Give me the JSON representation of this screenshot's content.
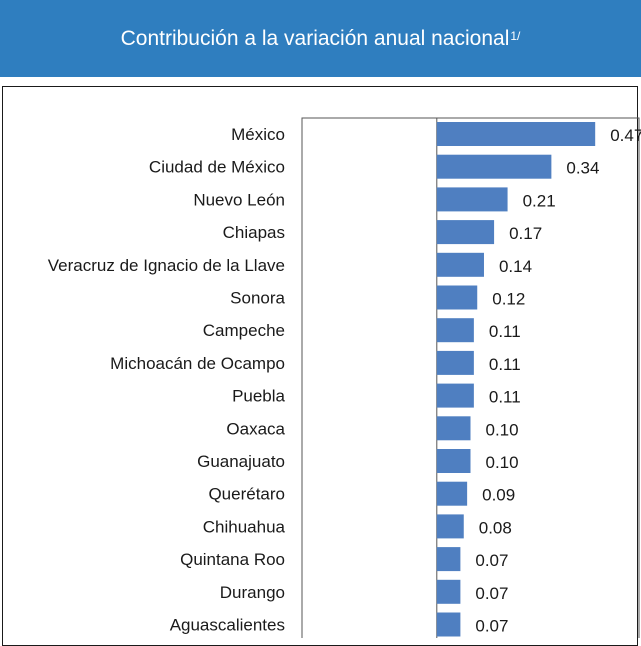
{
  "header": {
    "title": "Contribución a la variación anual nacional",
    "superscript": "1/"
  },
  "colors": {
    "header_bg": "#2f7ebf",
    "bar": "#4f7fc1"
  },
  "chart_data": {
    "type": "bar",
    "orientation": "horizontal",
    "title": "Contribución a la variación anual nacional",
    "categories": [
      "México",
      "Ciudad de México",
      "Nuevo León",
      "Chiapas",
      "Veracruz de Ignacio de la Llave",
      "Sonora",
      "Campeche",
      "Michoacán de Ocampo",
      "Puebla",
      "Oaxaca",
      "Guanajuato",
      "Querétaro",
      "Chihuahua",
      "Quintana Roo",
      "Durango",
      "Aguascalientes"
    ],
    "values": [
      0.47,
      0.34,
      0.21,
      0.17,
      0.14,
      0.12,
      0.11,
      0.11,
      0.11,
      0.1,
      0.1,
      0.09,
      0.08,
      0.07,
      0.07,
      0.07
    ],
    "labels": [
      "0.47",
      "0.34",
      "0.21",
      "0.17",
      "0.14",
      "0.12",
      "0.11",
      "0.11",
      "0.11",
      "0.10",
      "0.10",
      "0.09",
      "0.08",
      "0.07",
      "0.07",
      "0.07"
    ],
    "xlabel": "",
    "ylabel": "",
    "xlim": [
      -0.4,
      0.6
    ]
  }
}
